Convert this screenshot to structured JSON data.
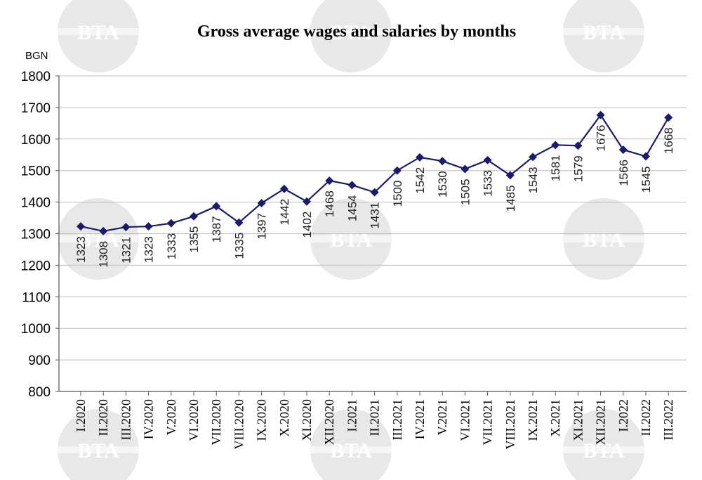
{
  "chart_data": {
    "type": "line",
    "title": "Gross average wages and salaries by months",
    "ylabel": "BGN",
    "xlabel": "",
    "ylim": [
      800,
      1800
    ],
    "yticks": [
      800,
      900,
      1000,
      1100,
      1200,
      1300,
      1400,
      1500,
      1600,
      1700,
      1800
    ],
    "grid": true,
    "legend": "none",
    "categories": [
      "I.2020",
      "II.2020",
      "III.2020",
      "IV.2020",
      "V.2020",
      "VI.2020",
      "VII.2020",
      "VIII.2020",
      "IX.2020",
      "X.2020",
      "XI.2020",
      "XII.2020",
      "I.2021",
      "II.2021",
      "III.2021",
      "IV.2021",
      "V.2021",
      "VI.2021",
      "VII.2021",
      "VIII.2021",
      "IX.2021",
      "X.2021",
      "XI.2021",
      "XII.2021",
      "I.2022",
      "II.2022",
      "III.2022"
    ],
    "values": [
      1323,
      1308,
      1321,
      1323,
      1333,
      1355,
      1387,
      1335,
      1397,
      1442,
      1402,
      1468,
      1454,
      1431,
      1500,
      1542,
      1530,
      1505,
      1533,
      1485,
      1543,
      1581,
      1579,
      1676,
      1566,
      1545,
      1668
    ],
    "line_color": "#1a1a6e",
    "watermark_text": "BTA"
  }
}
